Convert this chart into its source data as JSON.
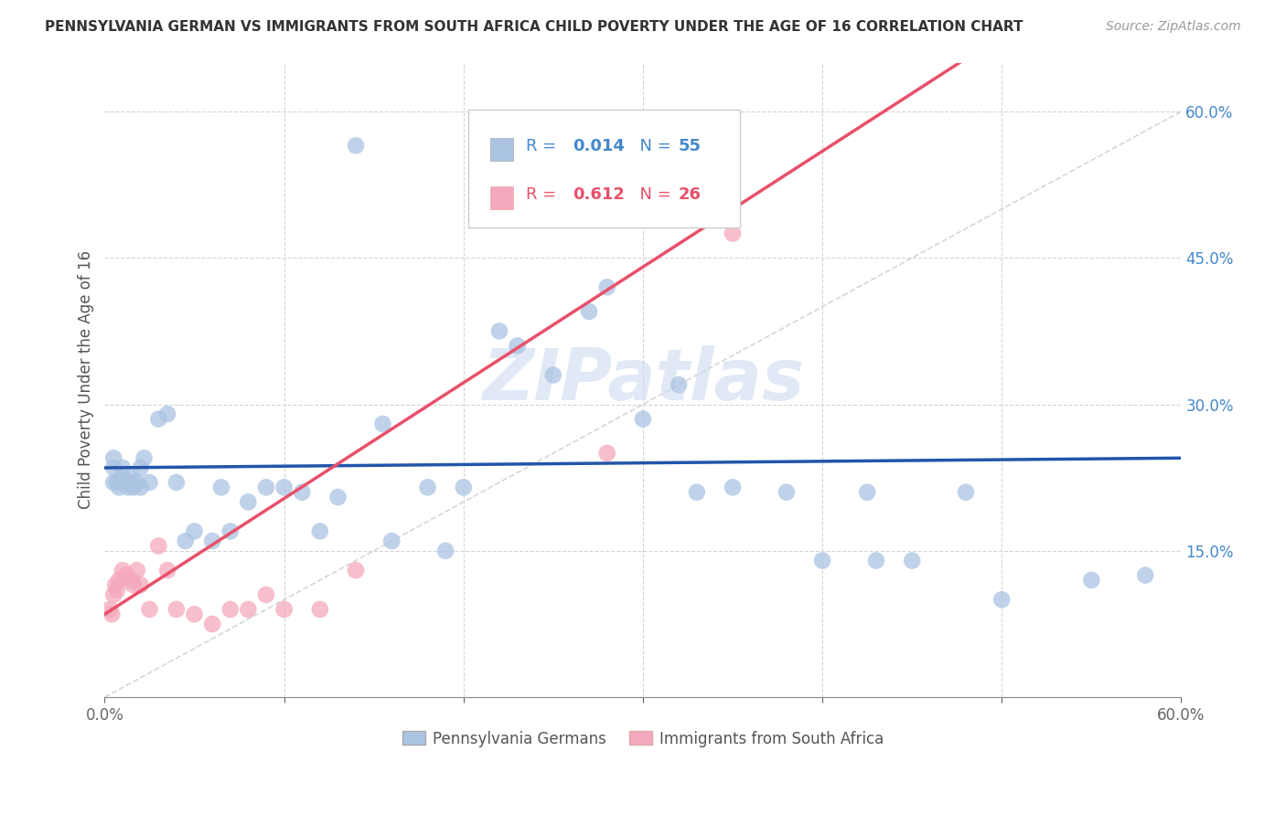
{
  "title": "PENNSYLVANIA GERMAN VS IMMIGRANTS FROM SOUTH AFRICA CHILD POVERTY UNDER THE AGE OF 16 CORRELATION CHART",
  "source": "Source: ZipAtlas.com",
  "ylabel": "Child Poverty Under the Age of 16",
  "xlim": [
    0.0,
    0.6
  ],
  "ylim": [
    0.0,
    0.65
  ],
  "blue_R": "0.014",
  "blue_N": "55",
  "pink_R": "0.612",
  "pink_N": "26",
  "blue_color": "#aac4e2",
  "pink_color": "#f5a8bc",
  "blue_line_color": "#2255aa",
  "pink_line_color": "#e8506a",
  "diag_line_color": "#cccccc",
  "legend_label_blue": "Pennsylvania Germans",
  "legend_label_pink": "Immigrants from South Africa",
  "watermark": "ZIPatlas",
  "blue_line_y_at_0": 0.235,
  "blue_line_y_at_60": 0.245,
  "pink_line_y_at_0": 0.085,
  "pink_line_y_at_35": 0.5,
  "blue_scatter_x": [
    0.005,
    0.005,
    0.005,
    0.007,
    0.008,
    0.01,
    0.01,
    0.012,
    0.013,
    0.015,
    0.015,
    0.016,
    0.018,
    0.02,
    0.02,
    0.022,
    0.025,
    0.03,
    0.035,
    0.04,
    0.045,
    0.05,
    0.06,
    0.065,
    0.07,
    0.08,
    0.09,
    0.1,
    0.11,
    0.12,
    0.13,
    0.14,
    0.155,
    0.16,
    0.18,
    0.19,
    0.2,
    0.22,
    0.23,
    0.25,
    0.27,
    0.28,
    0.3,
    0.32,
    0.33,
    0.35,
    0.38,
    0.4,
    0.425,
    0.43,
    0.45,
    0.48,
    0.5,
    0.55,
    0.58
  ],
  "blue_scatter_y": [
    0.235,
    0.245,
    0.22,
    0.22,
    0.215,
    0.235,
    0.225,
    0.22,
    0.215,
    0.225,
    0.22,
    0.215,
    0.22,
    0.235,
    0.215,
    0.245,
    0.22,
    0.285,
    0.29,
    0.22,
    0.16,
    0.17,
    0.16,
    0.215,
    0.17,
    0.2,
    0.215,
    0.215,
    0.21,
    0.17,
    0.205,
    0.565,
    0.28,
    0.16,
    0.215,
    0.15,
    0.215,
    0.375,
    0.36,
    0.33,
    0.395,
    0.42,
    0.285,
    0.32,
    0.21,
    0.215,
    0.21,
    0.14,
    0.21,
    0.14,
    0.14,
    0.21,
    0.1,
    0.12,
    0.125
  ],
  "pink_scatter_x": [
    0.003,
    0.004,
    0.005,
    0.006,
    0.007,
    0.008,
    0.01,
    0.012,
    0.015,
    0.016,
    0.018,
    0.02,
    0.025,
    0.03,
    0.035,
    0.04,
    0.05,
    0.06,
    0.07,
    0.08,
    0.09,
    0.1,
    0.12,
    0.14,
    0.28,
    0.35
  ],
  "pink_scatter_y": [
    0.09,
    0.085,
    0.105,
    0.115,
    0.11,
    0.12,
    0.13,
    0.125,
    0.12,
    0.115,
    0.13,
    0.115,
    0.09,
    0.155,
    0.13,
    0.09,
    0.085,
    0.075,
    0.09,
    0.09,
    0.105,
    0.09,
    0.09,
    0.13,
    0.25,
    0.475
  ]
}
